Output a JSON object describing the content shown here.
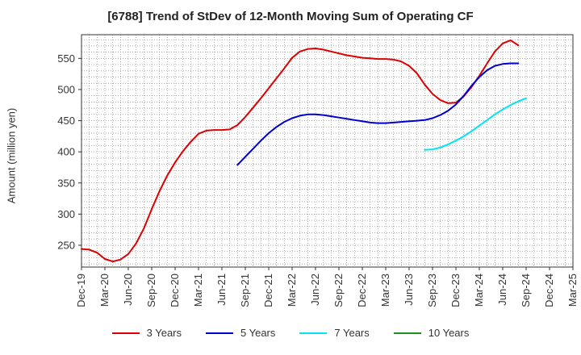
{
  "chart_data": {
    "type": "line",
    "title": "[6788]  Trend of StDev of 12-Month Moving Sum of Operating CF",
    "xlabel": "",
    "ylabel": "Amount (million yen)",
    "x_ticks": [
      "Dec-19",
      "Mar-20",
      "Jun-20",
      "Sep-20",
      "Dec-20",
      "Mar-21",
      "Jun-21",
      "Sep-21",
      "Dec-21",
      "Mar-22",
      "Jun-22",
      "Sep-22",
      "Dec-22",
      "Mar-23",
      "Jun-23",
      "Sep-23",
      "Dec-23",
      "Mar-24",
      "Jun-24",
      "Sep-24",
      "Dec-24",
      "Mar-25"
    ],
    "y_ticks": [
      250,
      300,
      350,
      400,
      450,
      500,
      550
    ],
    "xlim": [
      0,
      63
    ],
    "ylim": [
      215,
      588
    ],
    "grid": true,
    "legend_position": "bottom",
    "series": [
      {
        "name": "3 Years",
        "color": "#dd0000",
        "x": [
          0,
          1,
          2,
          3,
          4,
          5,
          6,
          7,
          8,
          9,
          10,
          11,
          12,
          13,
          14,
          15,
          16,
          17,
          18,
          19,
          20,
          21,
          22,
          23,
          24,
          25,
          26,
          27,
          28,
          29,
          30,
          31,
          32,
          33,
          34,
          35,
          36,
          37,
          38,
          39,
          40,
          41,
          42,
          43,
          44,
          45,
          46,
          47,
          48,
          49,
          50,
          51,
          52,
          53,
          54,
          55,
          56,
          57
        ],
        "values": [
          244,
          243,
          238,
          228,
          224,
          227,
          236,
          253,
          277,
          308,
          337,
          362,
          383,
          401,
          416,
          429,
          434,
          435,
          435,
          436,
          443,
          456,
          471,
          486,
          502,
          518,
          534,
          551,
          561,
          565,
          566,
          564,
          561,
          558,
          555,
          553,
          551,
          550,
          549,
          549,
          548,
          545,
          538,
          526,
          508,
          493,
          483,
          478,
          479,
          489,
          504,
          522,
          542,
          561,
          574,
          579,
          571,
          null
        ]
      },
      {
        "name": "5 Years",
        "color": "#0000cc",
        "x": [
          20,
          21,
          22,
          23,
          24,
          25,
          26,
          27,
          28,
          29,
          30,
          31,
          32,
          33,
          34,
          35,
          36,
          37,
          38,
          39,
          40,
          41,
          42,
          43,
          44,
          45,
          46,
          47,
          48,
          49,
          50,
          51,
          52,
          53,
          54,
          55,
          56,
          57
        ],
        "values": [
          379,
          392,
          405,
          418,
          430,
          440,
          448,
          454,
          458,
          460,
          460,
          459,
          457,
          455,
          453,
          451,
          449,
          447,
          446,
          446,
          447,
          448,
          449,
          450,
          451,
          454,
          459,
          466,
          476,
          490,
          506,
          520,
          531,
          538,
          541,
          542,
          542,
          null
        ]
      },
      {
        "name": "7 Years",
        "color": "#00e5ee",
        "x": [
          44,
          45,
          46,
          47,
          48,
          49,
          50,
          51,
          52,
          53,
          54,
          55,
          56,
          57
        ],
        "values": [
          403,
          404,
          407,
          412,
          418,
          425,
          433,
          442,
          451,
          460,
          468,
          475,
          481,
          486
        ]
      },
      {
        "name": "10 Years",
        "color": "#228b22",
        "x": [],
        "values": []
      }
    ]
  }
}
